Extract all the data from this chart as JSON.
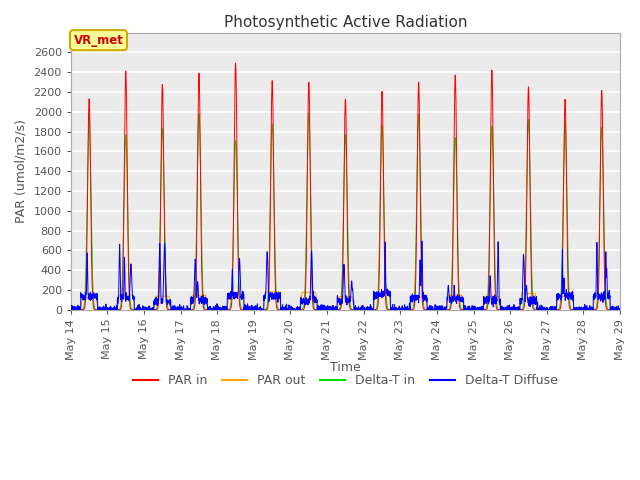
{
  "title": "Photosynthetic Active Radiation",
  "ylabel": "PAR (umol/m2/s)",
  "xlabel": "Time",
  "ylim": [
    0,
    2800
  ],
  "yticks": [
    0,
    200,
    400,
    600,
    800,
    1000,
    1200,
    1400,
    1600,
    1800,
    2000,
    2200,
    2400,
    2600
  ],
  "colors": {
    "PAR in": "#FF0000",
    "PAR out": "#FFA500",
    "Delta-T in": "#00DD00",
    "Delta-T Diffuse": "#0000FF"
  },
  "annotation_text": "VR_met",
  "annotation_color": "#CC0000",
  "annotation_bg": "#FFFF99",
  "annotation_border": "#CCAA00",
  "plot_bg": "#EBEBEB",
  "grid_color": "#FFFFFF",
  "n_days": 15,
  "start_day": 14,
  "title_fontsize": 11,
  "label_fontsize": 9,
  "tick_fontsize": 8,
  "tick_color": "#555555"
}
